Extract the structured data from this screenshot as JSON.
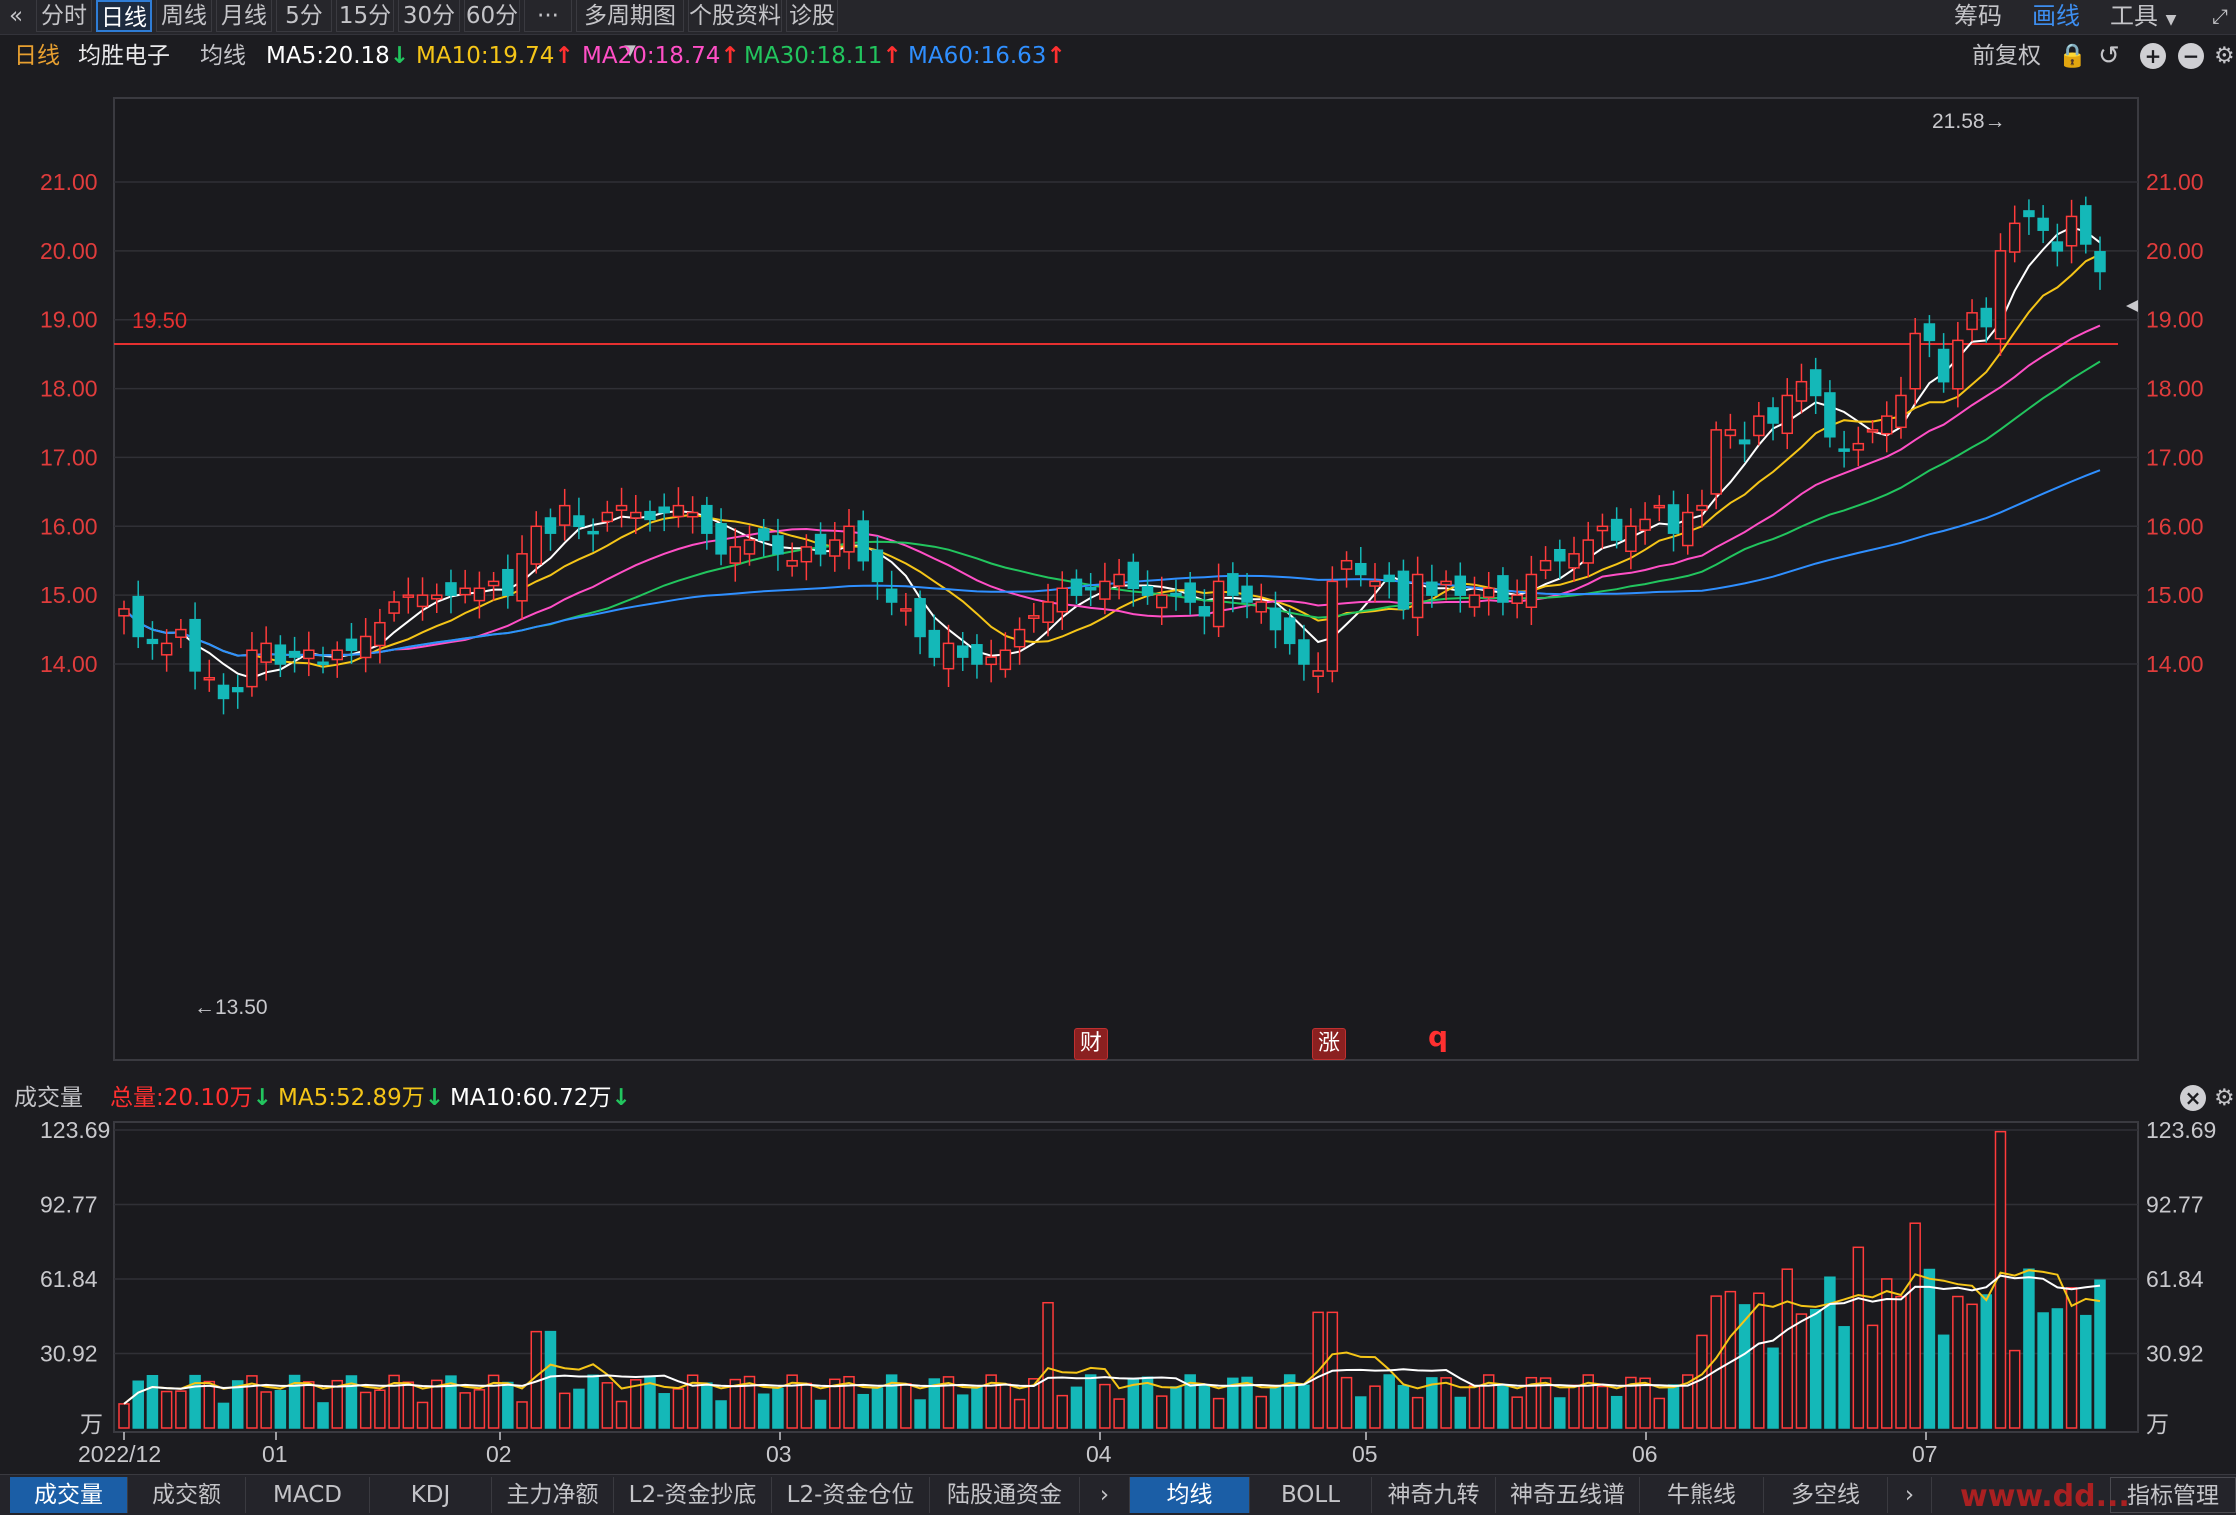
{
  "toolbar": {
    "back_icon": "double-left-chevron",
    "tabs": [
      "分时",
      "日线",
      "周线",
      "月线",
      "5分",
      "15分",
      "30分",
      "60分",
      "···",
      "多周期图",
      "个股资料",
      "诊股"
    ],
    "active_tab": "日线",
    "right": [
      "筹码",
      "画线",
      "工具"
    ],
    "active_right": "画线"
  },
  "ma_header": {
    "period": "日线",
    "stock_name": "均胜电子",
    "indicator": "均线",
    "ma5": "MA5:20.18",
    "ma10": "MA10:19.74",
    "ma20": "MA20:18.74",
    "ma30": "MA30:18.11",
    "ma60": "MA60:16.63",
    "adjust": "前复权",
    "colors": {
      "ma5": "#ffffff",
      "ma10": "#f5c518",
      "ma20": "#ff4fc6",
      "ma30": "#22c55e",
      "ma60": "#2f8fff"
    }
  },
  "price_chart": {
    "y_labels": [
      "21.00",
      "20.00",
      "19.00",
      "18.00",
      "17.00",
      "16.00",
      "15.00",
      "14.00"
    ],
    "hline_label": "19.50",
    "high_label": "21.58→",
    "low_label": "←13.50",
    "markers": [
      "财",
      "涨",
      "q"
    ]
  },
  "volume_header": {
    "title": "成交量",
    "total": "总量:20.10万",
    "ma5": "MA5:52.89万",
    "ma10": "MA10:60.72万",
    "y_labels": [
      "123.69",
      "92.77",
      "61.84",
      "30.92",
      "万"
    ]
  },
  "x_labels": [
    "2022/12",
    "01",
    "02",
    "03",
    "04",
    "05",
    "06",
    "07"
  ],
  "bottom_tabs_left": [
    "成交量",
    "成交额",
    "MACD",
    "KDJ",
    "主力净额",
    "L2-资金抄底",
    "L2-资金仓位",
    "陆股通资金"
  ],
  "bottom_tabs_right": [
    "均线",
    "BOLL",
    "神奇九转",
    "神奇五线谱",
    "牛熊线",
    "多空线"
  ],
  "bottom_right_label": "指标管理",
  "watermark": "www.dd...",
  "chart_data": {
    "type": "candlestick",
    "closes": [
      14.8,
      14.4,
      14.3,
      14.3,
      14.5,
      13.9,
      13.8,
      13.5,
      13.6,
      14.2,
      14.3,
      14.0,
      14.1,
      14.2,
      14.0,
      14.2,
      14.2,
      14.4,
      14.6,
      14.9,
      15.0,
      15.0,
      15.0,
      15.0,
      15.1,
      15.1,
      15.2,
      15.0,
      15.6,
      16.0,
      15.9,
      16.3,
      16.0,
      15.9,
      16.2,
      16.3,
      16.2,
      16.1,
      16.2,
      16.3,
      16.2,
      15.9,
      15.6,
      15.7,
      15.8,
      15.8,
      15.6,
      15.5,
      15.7,
      15.6,
      15.8,
      16.0,
      15.5,
      15.2,
      14.9,
      14.8,
      14.4,
      14.1,
      14.3,
      14.1,
      14.0,
      14.1,
      14.2,
      14.5,
      14.7,
      14.9,
      15.1,
      15.0,
      15.1,
      15.2,
      15.3,
      15.1,
      15.0,
      15.0,
      15.0,
      14.9,
      14.7,
      15.2,
      15.0,
      14.9,
      14.9,
      14.5,
      14.3,
      14.0,
      13.9,
      15.2,
      15.5,
      15.3,
      15.2,
      15.2,
      14.8,
      15.3,
      15.0,
      15.2,
      15.0,
      15.0,
      15.1,
      14.9,
      15.0,
      15.3,
      15.5,
      15.5,
      15.6,
      15.8,
      16.0,
      15.8,
      16.0,
      16.1,
      16.3,
      15.9,
      16.2,
      16.3,
      17.4,
      17.4,
      17.2,
      17.6,
      17.5,
      17.9,
      18.1,
      17.9,
      17.3,
      17.1,
      17.2,
      17.4,
      17.6,
      17.9,
      18.8,
      18.7,
      18.1,
      18.7,
      19.1,
      18.9,
      20.0,
      20.4,
      20.5,
      20.3,
      20.0,
      20.5,
      20.1,
      19.7
    ],
    "volume_unit": "万",
    "ma_unit_volume": "万"
  }
}
